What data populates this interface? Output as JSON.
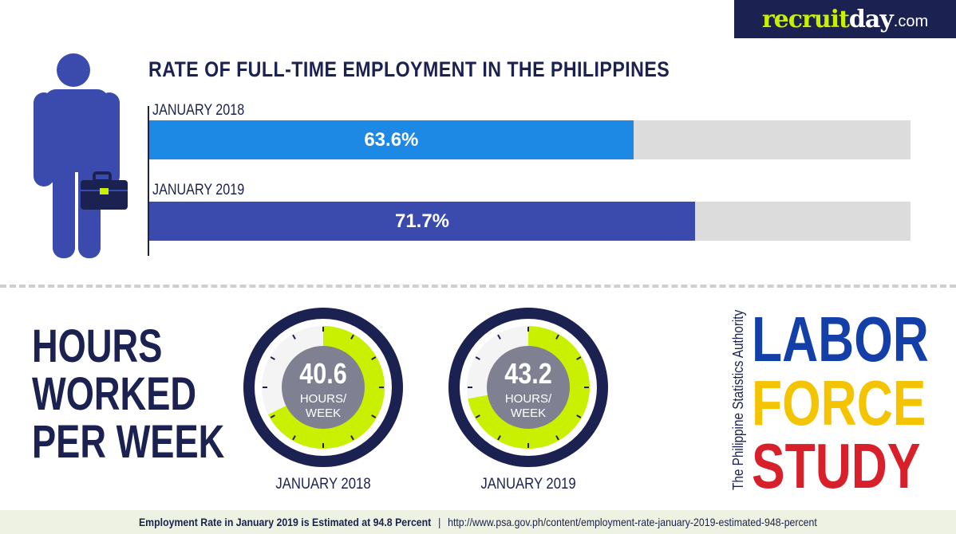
{
  "brand": {
    "part1": "recruit",
    "part2": "day",
    "part3": ".com"
  },
  "chart_data": [
    {
      "type": "bar",
      "title": "RATE OF FULL-TIME EMPLOYMENT IN THE PHILIPPINES",
      "categories": [
        "JANUARY 2018",
        "JANUARY 2019"
      ],
      "values": [
        63.6,
        71.7
      ],
      "value_labels": [
        "63.6%",
        "71.7%"
      ],
      "ylim": [
        0,
        100
      ],
      "colors": [
        "#1e88e5",
        "#3a4aad"
      ],
      "track_color": "#dcdcdc",
      "orientation": "horizontal"
    },
    {
      "type": "pie",
      "title": "HOURS WORKED PER WEEK",
      "categories": [
        "JANUARY 2018",
        "JANUARY 2019"
      ],
      "values": [
        40.6,
        43.2
      ],
      "max": 60,
      "value_labels": [
        "40.6",
        "43.2"
      ],
      "unit_line1": "HOURS/",
      "unit_line2": "WEEK",
      "colors": {
        "fill": "#c8f000",
        "rim": "#1b2150",
        "center": "#7f8193",
        "face": "#f4f4f4"
      }
    }
  ],
  "hours_title": {
    "line1": "HOURS",
    "line2": "WORKED",
    "line3": "PER WEEK"
  },
  "source": {
    "vertical": "The Philippine Statistics Authority",
    "line1": "LABOR",
    "line2": "FORCE",
    "line3": "STUDY",
    "colors": {
      "line1": "#1340a8",
      "line2": "#f5c400",
      "line3": "#d8202a"
    }
  },
  "footer": {
    "headline": "Employment Rate in January 2019 is Estimated at 94.8 Percent",
    "separator": "|",
    "url": "http://www.psa.gov.ph/content/employment-rate-january-2019-estimated-948-percent"
  }
}
